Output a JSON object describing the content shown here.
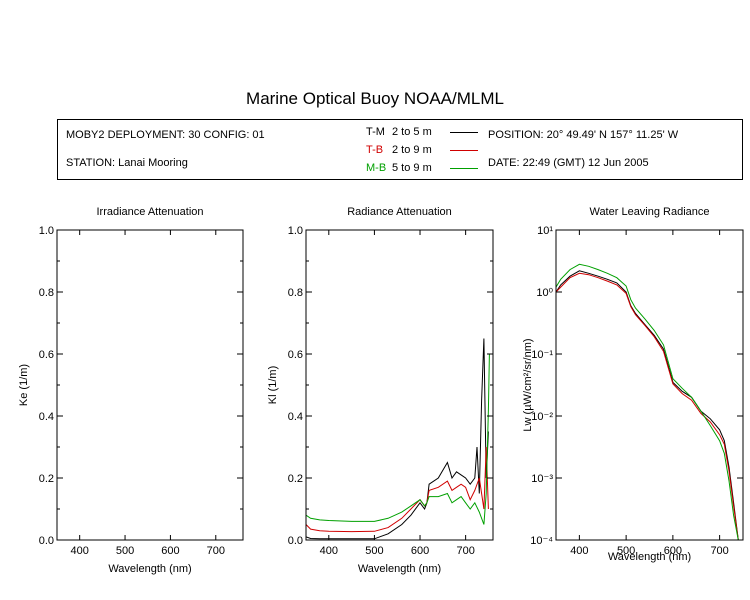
{
  "title": "Marine Optical Buoy NOAA/MLML",
  "info": {
    "deployment": "MOBY2 DEPLOYMENT: 30 CONFIG: 01",
    "station": "STATION: Lanai Mooring",
    "position": "POSITION: 20° 49.49' N   157° 11.25' W",
    "date": "DATE: 22:49 (GMT) 12 Jun 2005",
    "legend": [
      {
        "name": "T-M",
        "range": "2 to 5  m",
        "color": "#000000"
      },
      {
        "name": "T-B",
        "range": "2 to 9  m",
        "color": "#d00000"
      },
      {
        "name": "M-B",
        "range": "5 to 9  m",
        "color": "#00a000"
      }
    ]
  },
  "chart_data": [
    {
      "type": "line",
      "title": "Irradiance Attenuation",
      "xlabel": "Wavelength (nm)",
      "ylabel": "Ke  (1/m)",
      "xlim": [
        350,
        760
      ],
      "ylim": [
        0,
        1.0
      ],
      "xticks": [
        400,
        500,
        600,
        700
      ],
      "yticks": [
        0.0,
        0.2,
        0.4,
        0.6,
        0.8,
        1.0
      ],
      "ytick_labels": [
        "0.0",
        "0.2",
        "0.4",
        "0.6",
        "0.8",
        "1.0"
      ],
      "series": []
    },
    {
      "type": "line",
      "title": "Radiance Attenuation",
      "xlabel": "Wavelength (nm)",
      "ylabel": "Kl  (1/m)",
      "xlim": [
        350,
        760
      ],
      "ylim": [
        0,
        1.0
      ],
      "xticks": [
        400,
        500,
        600,
        700
      ],
      "yticks": [
        0.0,
        0.2,
        0.4,
        0.6,
        0.8,
        1.0
      ],
      "ytick_labels": [
        "0.0",
        "0.2",
        "0.4",
        "0.6",
        "0.8",
        "1.0"
      ],
      "series": [
        {
          "color": "#000000",
          "x": [
            350,
            360,
            380,
            400,
            450,
            500,
            530,
            560,
            580,
            600,
            610,
            615,
            620,
            640,
            660,
            670,
            680,
            690,
            700,
            710,
            720,
            725,
            730,
            735,
            740,
            745,
            750
          ],
          "y": [
            0.01,
            0.005,
            0.004,
            0.004,
            0.004,
            0.004,
            0.02,
            0.05,
            0.08,
            0.12,
            0.1,
            0.12,
            0.18,
            0.2,
            0.25,
            0.2,
            0.22,
            0.21,
            0.2,
            0.18,
            0.2,
            0.3,
            0.15,
            0.45,
            0.65,
            0.2,
            0.35
          ]
        },
        {
          "color": "#d00000",
          "x": [
            350,
            360,
            380,
            400,
            450,
            500,
            530,
            560,
            580,
            600,
            610,
            615,
            620,
            640,
            660,
            670,
            680,
            690,
            700,
            710,
            720,
            730,
            740,
            745,
            750
          ],
          "y": [
            0.05,
            0.035,
            0.03,
            0.028,
            0.027,
            0.028,
            0.04,
            0.07,
            0.1,
            0.13,
            0.11,
            0.12,
            0.16,
            0.17,
            0.19,
            0.16,
            0.17,
            0.18,
            0.17,
            0.13,
            0.16,
            0.2,
            0.1,
            0.3,
            0.1
          ]
        },
        {
          "color": "#00a000",
          "x": [
            350,
            360,
            380,
            400,
            450,
            500,
            530,
            560,
            580,
            600,
            610,
            615,
            620,
            640,
            660,
            670,
            680,
            690,
            700,
            710,
            720,
            730,
            740,
            745,
            750,
            752
          ],
          "y": [
            0.08,
            0.07,
            0.065,
            0.063,
            0.06,
            0.06,
            0.07,
            0.09,
            0.11,
            0.13,
            0.11,
            0.12,
            0.14,
            0.14,
            0.15,
            0.12,
            0.13,
            0.14,
            0.12,
            0.1,
            0.12,
            0.09,
            0.05,
            0.15,
            0.42,
            0.6
          ]
        }
      ]
    },
    {
      "type": "line",
      "title": "Water Leaving Radiance",
      "xlabel": "Wavelength (nm)",
      "ylabel": "Lw  (µW/cm²/sr/nm)",
      "yscale": "log",
      "xlim": [
        350,
        750
      ],
      "ylim": [
        0.0001,
        10
      ],
      "xticks": [
        400,
        500,
        600,
        700
      ],
      "yticks": [
        0.0001,
        0.001,
        0.01,
        0.1,
        1,
        10
      ],
      "ytick_labels": [
        "10⁻⁴",
        "10⁻³",
        "10⁻²",
        "10⁻¹",
        "10⁰",
        "10¹"
      ],
      "series": [
        {
          "color": "#000000",
          "x": [
            350,
            360,
            380,
            400,
            420,
            440,
            460,
            480,
            500,
            510,
            520,
            540,
            560,
            580,
            600,
            620,
            640,
            660,
            680,
            700,
            710,
            720,
            730,
            740
          ],
          "y": [
            1.0,
            1.3,
            1.8,
            2.2,
            2.0,
            1.8,
            1.6,
            1.4,
            1.0,
            0.6,
            0.45,
            0.3,
            0.2,
            0.12,
            0.035,
            0.025,
            0.02,
            0.012,
            0.009,
            0.006,
            0.004,
            0.0015,
            0.0004,
            0.0001
          ]
        },
        {
          "color": "#d00000",
          "x": [
            350,
            360,
            380,
            400,
            420,
            440,
            460,
            480,
            500,
            510,
            520,
            540,
            560,
            580,
            600,
            620,
            640,
            660,
            680,
            700,
            710,
            720,
            730,
            740
          ],
          "y": [
            1.0,
            1.2,
            1.7,
            2.0,
            1.9,
            1.7,
            1.5,
            1.3,
            0.95,
            0.58,
            0.43,
            0.29,
            0.19,
            0.11,
            0.033,
            0.023,
            0.018,
            0.011,
            0.008,
            0.005,
            0.0035,
            0.0013,
            0.00035,
            0.0001
          ]
        },
        {
          "color": "#00a000",
          "x": [
            350,
            360,
            380,
            400,
            420,
            440,
            460,
            480,
            500,
            510,
            520,
            540,
            560,
            580,
            600,
            620,
            640,
            660,
            680,
            700,
            710,
            720,
            730,
            740
          ],
          "y": [
            1.2,
            1.6,
            2.3,
            2.8,
            2.6,
            2.3,
            2.0,
            1.7,
            1.25,
            0.75,
            0.55,
            0.37,
            0.24,
            0.14,
            0.04,
            0.028,
            0.02,
            0.012,
            0.007,
            0.004,
            0.0025,
            0.0009,
            0.00025,
            0.0001
          ]
        }
      ]
    }
  ]
}
